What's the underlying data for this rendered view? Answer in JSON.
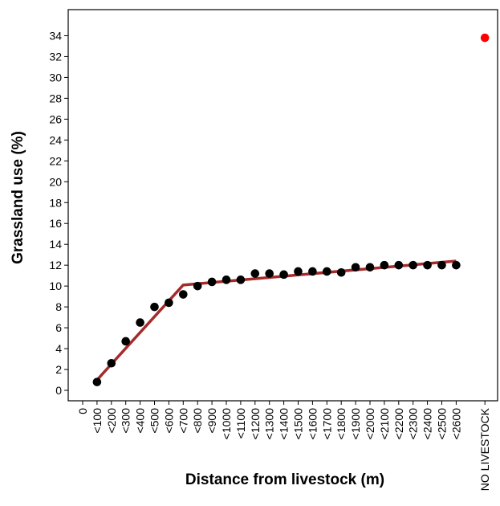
{
  "chart_data": {
    "type": "scatter",
    "xlabel": "Distance from livestock (m)",
    "ylabel": "Grassland use (%)",
    "categories": [
      "0",
      "<100",
      "<200",
      "<300",
      "<400",
      "<500",
      "<600",
      "<700",
      "<800",
      "<900",
      "<1000",
      "<1100",
      "<1200",
      "<1300",
      "<1400",
      "<1500",
      "<1600",
      "<1700",
      "<1800",
      "<1900",
      "<2000",
      "<2100",
      "<2200",
      "<2300",
      "<2400",
      "<2500",
      "<2600",
      "",
      "NO LIVESTOCK"
    ],
    "yticks": [
      0,
      2,
      4,
      6,
      8,
      10,
      12,
      14,
      16,
      18,
      20,
      22,
      24,
      26,
      28,
      30,
      32,
      34
    ],
    "ylim": [
      -1,
      36.5
    ],
    "grid": false,
    "series": [
      {
        "color": "#000000",
        "points": [
          {
            "x": "<100",
            "y": 0.8
          },
          {
            "x": "<200",
            "y": 2.6
          },
          {
            "x": "<300",
            "y": 4.7
          },
          {
            "x": "<400",
            "y": 6.5
          },
          {
            "x": "<500",
            "y": 8.0
          },
          {
            "x": "<600",
            "y": 8.4
          },
          {
            "x": "<700",
            "y": 9.2
          },
          {
            "x": "<800",
            "y": 10.0
          },
          {
            "x": "<900",
            "y": 10.4
          },
          {
            "x": "<1000",
            "y": 10.6
          },
          {
            "x": "<1100",
            "y": 10.6
          },
          {
            "x": "<1200",
            "y": 11.2
          },
          {
            "x": "<1300",
            "y": 11.2
          },
          {
            "x": "<1400",
            "y": 11.1
          },
          {
            "x": "<1500",
            "y": 11.4
          },
          {
            "x": "<1600",
            "y": 11.4
          },
          {
            "x": "<1700",
            "y": 11.4
          },
          {
            "x": "<1800",
            "y": 11.3
          },
          {
            "x": "<1900",
            "y": 11.8
          },
          {
            "x": "<2000",
            "y": 11.8
          },
          {
            "x": "<2100",
            "y": 12.0
          },
          {
            "x": "<2200",
            "y": 12.0
          },
          {
            "x": "<2300",
            "y": 12.0
          },
          {
            "x": "<2400",
            "y": 12.0
          },
          {
            "x": "<2500",
            "y": 12.0
          },
          {
            "x": "<2600",
            "y": 12.0
          }
        ]
      },
      {
        "color": "#ff0000",
        "points": [
          {
            "x": "NO LIVESTOCK",
            "y": 33.8
          }
        ]
      }
    ],
    "fit_line": {
      "color": "#a52a2a",
      "points": [
        {
          "x": "<100",
          "y": 1.0
        },
        {
          "x": "<700",
          "y": 10.1
        },
        {
          "x": "<2600",
          "y": 12.4
        }
      ]
    }
  }
}
